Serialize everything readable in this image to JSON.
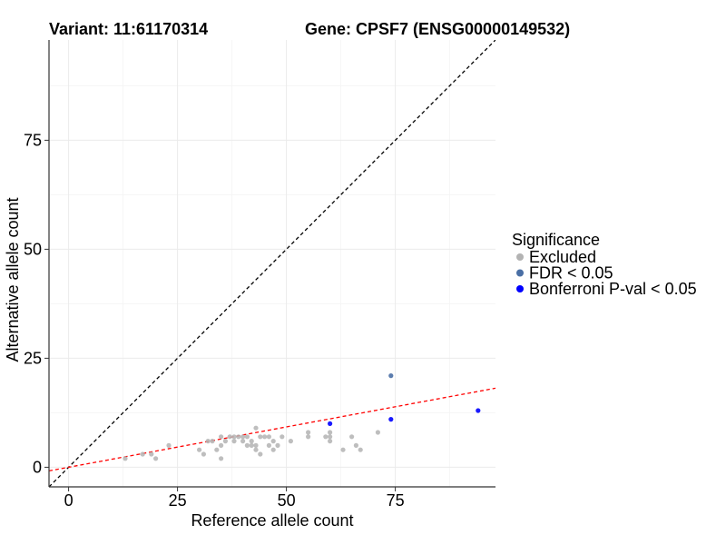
{
  "chart_data": {
    "type": "scatter",
    "title_left": "Variant: 11:61170314",
    "title_right": "Gene: CPSF7 (ENSG00000149532)",
    "xlabel": "Reference allele count",
    "ylabel": "Alternative allele count",
    "xlim": [
      -4.5,
      98
    ],
    "ylim": [
      -4.5,
      98
    ],
    "x_ticks": [
      0,
      25,
      50,
      75
    ],
    "y_ticks": [
      0,
      25,
      50,
      75
    ],
    "grid": true,
    "legend": {
      "title": "Significance",
      "position": "right",
      "entries": [
        {
          "label": "Excluded",
          "color": "#b3b3b3"
        },
        {
          "label": "FDR < 0.05",
          "color": "#4a6fa5"
        },
        {
          "label": "Bonferroni P-val < 0.05",
          "color": "#0000ff"
        }
      ]
    },
    "reference_lines": [
      {
        "name": "identity",
        "slope": 1.0,
        "intercept": 0,
        "color": "#000000",
        "dash": "dashed"
      },
      {
        "name": "fit",
        "slope": 0.185,
        "intercept": 0,
        "color": "#ff0000",
        "dash": "dashed"
      }
    ],
    "series": [
      {
        "group": "Excluded",
        "color": "#b3b3b3",
        "points": [
          [
            13,
            2
          ],
          [
            17,
            3
          ],
          [
            19,
            3
          ],
          [
            20,
            2
          ],
          [
            23,
            5
          ],
          [
            30,
            4
          ],
          [
            31,
            3
          ],
          [
            32,
            6
          ],
          [
            33,
            6
          ],
          [
            34,
            4
          ],
          [
            35,
            5
          ],
          [
            35,
            7
          ],
          [
            35,
            2
          ],
          [
            36,
            6
          ],
          [
            37,
            7
          ],
          [
            38,
            6
          ],
          [
            38,
            7
          ],
          [
            39,
            7
          ],
          [
            40,
            6
          ],
          [
            40,
            7
          ],
          [
            41,
            5
          ],
          [
            41,
            7
          ],
          [
            42,
            6
          ],
          [
            42,
            5
          ],
          [
            43,
            9
          ],
          [
            43,
            4
          ],
          [
            43,
            5
          ],
          [
            44,
            3
          ],
          [
            44,
            7
          ],
          [
            45,
            7
          ],
          [
            46,
            7
          ],
          [
            46,
            5
          ],
          [
            47,
            6
          ],
          [
            47,
            4
          ],
          [
            48,
            5
          ],
          [
            49,
            7
          ],
          [
            51,
            6
          ],
          [
            55,
            7
          ],
          [
            55,
            8
          ],
          [
            59,
            7
          ],
          [
            60,
            6
          ],
          [
            60,
            8
          ],
          [
            60,
            7
          ],
          [
            63,
            4
          ],
          [
            65,
            7
          ],
          [
            66,
            5
          ],
          [
            67,
            4
          ],
          [
            71,
            8
          ]
        ]
      },
      {
        "group": "FDR < 0.05",
        "color": "#4a6fa5",
        "points": [
          [
            74,
            21
          ]
        ]
      },
      {
        "group": "Bonferroni P-val < 0.05",
        "color": "#0000ff",
        "points": [
          [
            60,
            10
          ],
          [
            74,
            11
          ],
          [
            94,
            13
          ]
        ]
      }
    ]
  }
}
